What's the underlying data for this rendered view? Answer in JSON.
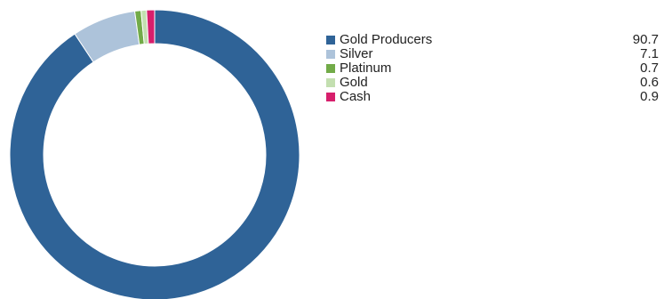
{
  "chart_data": {
    "type": "pie",
    "variant": "donut",
    "title": "",
    "categories": [
      "Gold Producers",
      "Silver",
      "Platinum",
      "Gold",
      "Cash"
    ],
    "values": [
      90.7,
      7.1,
      0.7,
      0.6,
      0.9
    ],
    "value_labels": [
      "90.7",
      "7.1",
      "0.7",
      "0.6",
      "0.9"
    ],
    "colors": [
      "#2f6397",
      "#adc3da",
      "#72ab48",
      "#c3dfb0",
      "#d71f6c"
    ],
    "legend_position": "right",
    "start_angle": "12 o'clock",
    "direction": "clockwise"
  }
}
